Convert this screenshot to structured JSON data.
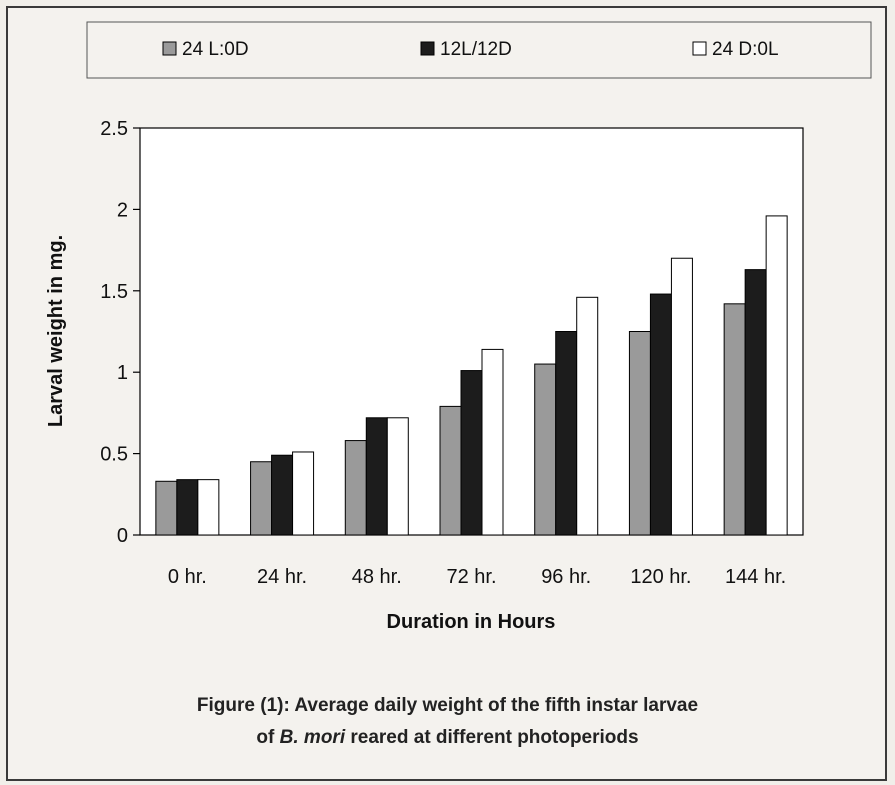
{
  "figure": {
    "caption_line1": "Figure (1): Average daily weight of the fifth instar larvae",
    "caption_line2_italic": "B. mori",
    "caption_line2_rest": " reared at different photoperiods"
  },
  "chart_data": {
    "type": "bar",
    "categories": [
      "0 hr.",
      "24 hr.",
      "48 hr.",
      "72 hr.",
      "96 hr.",
      "120 hr.",
      "144 hr."
    ],
    "series": [
      {
        "name": "24 L:0D",
        "values": [
          0.33,
          0.45,
          0.58,
          0.79,
          1.05,
          1.25,
          1.42
        ],
        "color": "#9a9a9a"
      },
      {
        "name": "12L/12D",
        "values": [
          0.34,
          0.49,
          0.72,
          1.01,
          1.25,
          1.48,
          1.63
        ],
        "color": "#1c1c1c"
      },
      {
        "name": "24 D:0L",
        "values": [
          0.34,
          0.51,
          0.72,
          1.14,
          1.46,
          1.7,
          1.96
        ],
        "color": "#ffffff"
      }
    ],
    "xlabel": "Duration in Hours",
    "ylabel": "Larval weight in mg.",
    "ylim": [
      0,
      2.5
    ],
    "yticks": [
      "0",
      "0.5",
      "1",
      "1.5",
      "2",
      "2.5"
    ],
    "legend_position": "top",
    "grid": false
  }
}
